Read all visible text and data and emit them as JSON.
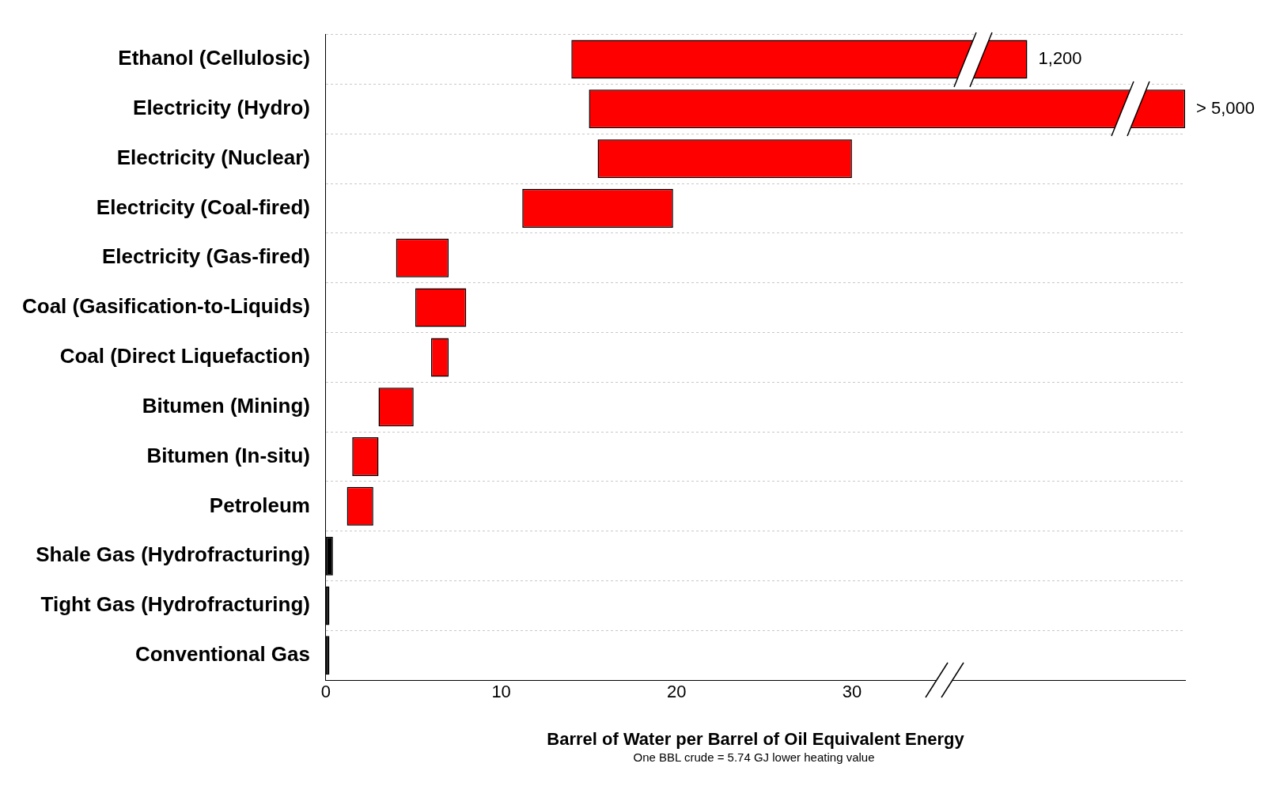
{
  "chart_data": {
    "type": "bar",
    "orientation": "horizontal",
    "categories": [
      "Ethanol (Cellulosic)",
      "Electricity (Hydro)",
      "Electricity (Nuclear)",
      "Electricity (Coal-fired)",
      "Electricity (Gas-fired)",
      "Coal (Gasification-to-Liquids)",
      "Coal (Direct Liquefaction)",
      "Bitumen (Mining)",
      "Bitumen (In-situ)",
      "Petroleum",
      "Shale Gas (Hydrofracturing)",
      "Tight Gas (Hydrofracturing)",
      "Conventional Gas"
    ],
    "base": [
      14,
      15,
      15.5,
      11.2,
      4,
      5.1,
      6,
      3,
      1.5,
      1.2,
      0,
      0,
      0
    ],
    "values": [
      26,
      34,
      14.5,
      8.6,
      3,
      2.9,
      1,
      2,
      1.5,
      1.5,
      0.4,
      0.2,
      0.2
    ],
    "colors": [
      "#ff0000",
      "#ff0000",
      "#ff0000",
      "#ff0000",
      "#ff0000",
      "#ff0000",
      "#ff0000",
      "#ff0000",
      "#ff0000",
      "#ff0000",
      "#000000",
      "#000000",
      "#000000"
    ],
    "xlim": [
      0,
      49
    ],
    "xticks": [
      0,
      10,
      20,
      30
    ],
    "xlabel": "Barrel of Water per Barrel of Oil Equivalent Energy",
    "annotations": [
      {
        "text": "1,200",
        "x": 40,
        "y": "Ethanol (Cellulosic)"
      },
      {
        "text": "> 5,000",
        "x": 49,
        "y": "Electricity (Hydro)"
      },
      "One BBL crude = 5.74 GJ lower heating value"
    ],
    "grid": "y",
    "legend": false
  }
}
